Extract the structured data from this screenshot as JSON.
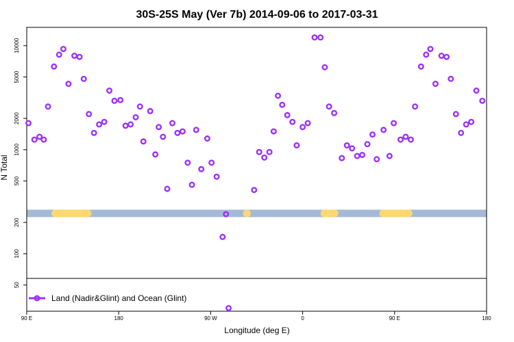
{
  "chart_data": {
    "type": "scatter",
    "title": "30S-25S May (Ver 7b)   2014-09-06 to 2017-03-31",
    "xlabel": "Longitude (deg E)",
    "ylabel": "N Total",
    "y_scale": "log",
    "xlim": [
      -90,
      180
    ],
    "ylim": [
      28,
      15000
    ],
    "x_ticks": [
      {
        "value": -90,
        "label": "90 E"
      },
      {
        "value": -36,
        "label": "180"
      },
      {
        "value": 18,
        "label": "90 W"
      },
      {
        "value": 72,
        "label": "0"
      },
      {
        "value": 126,
        "label": "90 E"
      },
      {
        "value": 180,
        "label": "180"
      }
    ],
    "y_ticks": [
      {
        "value": 50,
        "label": "50"
      },
      {
        "value": 100,
        "label": "100"
      },
      {
        "value": 200,
        "label": "200"
      },
      {
        "value": 500,
        "label": "500"
      },
      {
        "value": 1000,
        "label": "1000"
      },
      {
        "value": 2000,
        "label": "2000"
      },
      {
        "value": 5000,
        "label": "5000"
      },
      {
        "value": 10000,
        "label": "10000"
      }
    ],
    "legend": {
      "label": "Land (Nadir&Glint) and Ocean (Glint)",
      "position": "bottom-left"
    },
    "colors": {
      "series": "#9b30ff",
      "ocean_band": "#a3bad6",
      "land_band": "#fdd870",
      "frame": "#000000"
    },
    "surface_band": {
      "y_range": [
        225,
        265
      ],
      "land_segments": [
        [
          -75.5,
          -52
        ],
        [
          37,
          41.5
        ],
        [
          82.5,
          93
        ],
        [
          117,
          136.5
        ]
      ]
    },
    "series": [
      {
        "name": "Land (Nadir&Glint) and Ocean (Glint)",
        "points": [
          [
            -89,
            1800
          ],
          [
            -85.5,
            1250
          ],
          [
            -82.5,
            1330
          ],
          [
            -80,
            1250
          ],
          [
            -77.5,
            2600
          ],
          [
            -74,
            6300
          ],
          [
            -71,
            8200
          ],
          [
            -68.5,
            9300
          ],
          [
            -65.5,
            4300
          ],
          [
            -62,
            8000
          ],
          [
            -59,
            7800
          ],
          [
            -56.5,
            4800
          ],
          [
            -53.5,
            2200
          ],
          [
            -50.5,
            1450
          ],
          [
            -47.5,
            1750
          ],
          [
            -44.5,
            1850
          ],
          [
            -41.5,
            3700
          ],
          [
            -38.5,
            2950
          ],
          [
            -35,
            3000
          ],
          [
            -32,
            1700
          ],
          [
            -29,
            1750
          ],
          [
            -26,
            2050
          ],
          [
            -23.5,
            2600
          ],
          [
            -21.5,
            1200
          ],
          [
            -17.5,
            2350
          ],
          [
            -14.5,
            900
          ],
          [
            -12.5,
            1650
          ],
          [
            -10,
            1330
          ],
          [
            -7.5,
            420
          ],
          [
            -4.5,
            1800
          ],
          [
            -1.5,
            1450
          ],
          [
            1.5,
            1500
          ],
          [
            4.5,
            750
          ],
          [
            7,
            460
          ],
          [
            9.5,
            1550
          ],
          [
            12.5,
            650
          ],
          [
            16,
            1280
          ],
          [
            18.5,
            750
          ],
          [
            21.5,
            550
          ],
          [
            25,
            145
          ],
          [
            27,
            240
          ],
          [
            28.5,
            30
          ],
          [
            43.5,
            410
          ],
          [
            46.5,
            950
          ],
          [
            49.5,
            840
          ],
          [
            52.5,
            950
          ],
          [
            55,
            1500
          ],
          [
            57.5,
            3300
          ],
          [
            60,
            2700
          ],
          [
            63,
            2150
          ],
          [
            66,
            1850
          ],
          [
            68.5,
            1100
          ],
          [
            72,
            1650
          ],
          [
            75,
            1800
          ],
          [
            79,
            12000
          ],
          [
            82.5,
            12000
          ],
          [
            85,
            6200
          ],
          [
            87.5,
            2600
          ],
          [
            90.5,
            2250
          ],
          [
            95,
            830
          ],
          [
            98,
            1100
          ],
          [
            101,
            1030
          ],
          [
            104,
            870
          ],
          [
            107,
            890
          ],
          [
            110,
            1130
          ],
          [
            113,
            1400
          ],
          [
            115.5,
            810
          ],
          [
            119.5,
            1550
          ],
          [
            123,
            870
          ],
          [
            125.5,
            1800
          ],
          [
            129.5,
            1250
          ],
          [
            132.5,
            1330
          ],
          [
            135.5,
            1250
          ],
          [
            138,
            2600
          ],
          [
            141.5,
            6300
          ],
          [
            144.5,
            8200
          ],
          [
            147,
            9300
          ],
          [
            150,
            4300
          ],
          [
            153.5,
            8000
          ],
          [
            156.5,
            7800
          ],
          [
            159,
            4800
          ],
          [
            162,
            2200
          ],
          [
            165,
            1450
          ],
          [
            168,
            1750
          ],
          [
            171,
            1850
          ],
          [
            174,
            3700
          ],
          [
            177.5,
            2950
          ]
        ]
      }
    ]
  }
}
